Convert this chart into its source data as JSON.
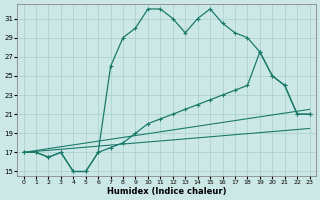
{
  "xlabel": "Humidex (Indice chaleur)",
  "bg_color": "#cce8e6",
  "grid_color": "#aacfcc",
  "line_color": "#1a7a6a",
  "xlim": [
    -0.5,
    23.5
  ],
  "ylim": [
    14.5,
    32.5
  ],
  "xticks": [
    0,
    1,
    2,
    3,
    4,
    5,
    6,
    7,
    8,
    9,
    10,
    11,
    12,
    13,
    14,
    15,
    16,
    17,
    18,
    19,
    20,
    21,
    22,
    23
  ],
  "yticks": [
    15,
    17,
    19,
    21,
    23,
    25,
    27,
    29,
    31
  ],
  "curve1_x": [
    0,
    1,
    2,
    3,
    4,
    5,
    6,
    7,
    8,
    9,
    10,
    11,
    12,
    13,
    14,
    15,
    16,
    17,
    18,
    19,
    20,
    21,
    22,
    23
  ],
  "curve1_y": [
    17,
    17,
    16.5,
    17,
    15,
    15,
    17,
    26,
    29,
    30,
    32,
    32,
    31,
    29.5,
    31,
    32,
    30.5,
    29.5,
    29,
    27.5,
    25,
    24,
    21,
    21
  ],
  "curve2_x": [
    0,
    1,
    2,
    3,
    4,
    5,
    6,
    7,
    8,
    9,
    10,
    11,
    12,
    13,
    14,
    15,
    16,
    17,
    18,
    19,
    20,
    21,
    22,
    23
  ],
  "curve2_y": [
    17,
    17,
    16.5,
    17,
    15,
    15,
    17,
    17.5,
    18,
    19,
    20,
    20.5,
    21,
    21.5,
    22,
    22.5,
    23,
    23.5,
    24,
    27.5,
    25,
    24,
    21,
    21
  ],
  "line3_x": [
    0,
    23
  ],
  "line3_y": [
    17,
    21.5
  ],
  "line4_x": [
    0,
    23
  ],
  "line4_y": [
    17,
    19.5
  ]
}
